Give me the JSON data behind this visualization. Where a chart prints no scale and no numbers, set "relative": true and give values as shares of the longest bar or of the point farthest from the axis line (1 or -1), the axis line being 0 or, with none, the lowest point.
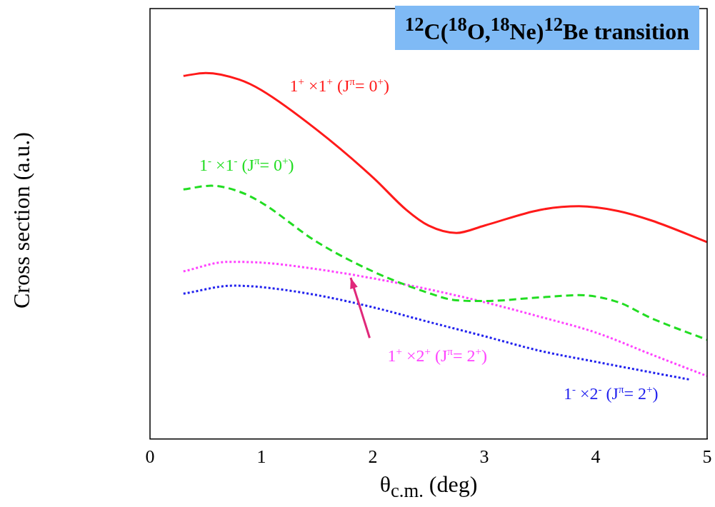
{
  "chart_data": {
    "type": "line",
    "title": "$^{12}$C($^{18}$O,$^{18}$Ne)$^{12}$Be transition",
    "xlabel": "θ$_{c.m.}$ (deg)",
    "ylabel": "Cross section (a.u.)",
    "relative": true,
    "grid": false,
    "legend": false,
    "marker": "none",
    "xlim": [
      0,
      5
    ],
    "xticks": [
      0,
      1,
      2,
      3,
      4,
      5
    ],
    "tick_labels": "x",
    "series": [
      {
        "name": "1$^{+}$ ×1$^{+}$ (J$^{π}$= 0$^{+}$)",
        "color": "#ff1a1a",
        "line_style": "solid",
        "x": [
          0.3,
          0.5,
          0.8,
          1.0,
          1.5,
          2.0,
          2.3,
          2.5,
          2.75,
          3.0,
          3.5,
          3.85,
          4.2,
          4.5,
          5.0
        ],
        "values": [
          0.992,
          1,
          0.982,
          0.953,
          0.844,
          0.715,
          0.626,
          0.583,
          0.563,
          0.583,
          0.626,
          0.636,
          0.623,
          0.597,
          0.538
        ]
      },
      {
        "name": "1$^{-}$ ×1$^{-}$ (J$^{π}$= 0$^{+}$)",
        "color": "#22dd22",
        "line_style": "dashed",
        "x": [
          0.3,
          0.55,
          0.8,
          1.0,
          1.5,
          2.0,
          2.5,
          2.75,
          3.0,
          3.5,
          3.85,
          4.2,
          4.5,
          5.0
        ],
        "values": [
          0.682,
          0.692,
          0.676,
          0.646,
          0.538,
          0.458,
          0.399,
          0.379,
          0.377,
          0.387,
          0.393,
          0.374,
          0.33,
          0.271
        ]
      },
      {
        "name": "1$^{+}$ ×2$^{+}$ (J$^{π}$= 2$^{+}$)",
        "color": "#ff44ff",
        "line_style": "dotted",
        "x": [
          0.3,
          0.7,
          1.0,
          1.5,
          2.0,
          2.5,
          3.0,
          3.5,
          4.0,
          4.5,
          5.0
        ],
        "values": [
          0.458,
          0.484,
          0.482,
          0.464,
          0.439,
          0.409,
          0.374,
          0.334,
          0.291,
          0.231,
          0.172
        ]
      },
      {
        "name": "1$^{-}$ ×2$^{-}$ (J$^{π}$= 2$^{+}$)",
        "color": "#2222ee",
        "line_style": "dotted",
        "x": [
          0.3,
          0.75,
          1.0,
          1.5,
          2.0,
          2.5,
          3.0,
          3.5,
          4.0,
          4.5,
          4.85
        ],
        "values": [
          0.397,
          0.419,
          0.415,
          0.393,
          0.36,
          0.32,
          0.281,
          0.241,
          0.211,
          0.182,
          0.162
        ]
      }
    ]
  }
}
